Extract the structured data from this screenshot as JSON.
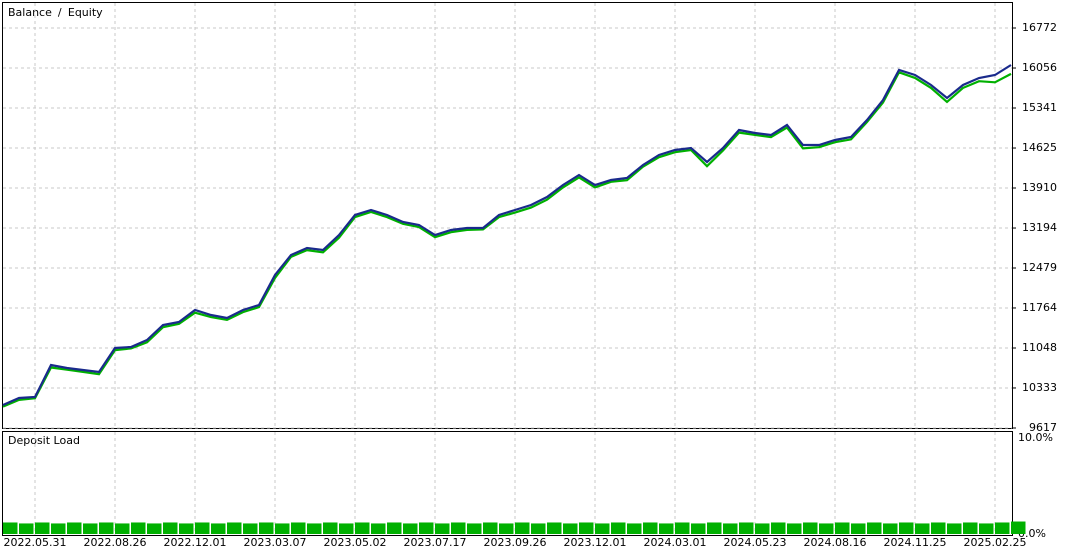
{
  "chart_data": [
    {
      "type": "line",
      "legend": "top-left",
      "grid": true,
      "categories": [
        null,
        null,
        "2022.05.31",
        null,
        null,
        null,
        null,
        "2022.08.26",
        null,
        null,
        null,
        null,
        "2022.12.01",
        null,
        null,
        null,
        null,
        "2023.03.07",
        null,
        null,
        null,
        null,
        "2023.05.02",
        null,
        null,
        null,
        null,
        "2023.07.17",
        null,
        null,
        null,
        null,
        "2023.09.26",
        null,
        null,
        null,
        null,
        "2023.12.01",
        null,
        null,
        null,
        null,
        "2024.03.01",
        null,
        null,
        null,
        null,
        "2024.05.23",
        null,
        null,
        null,
        null,
        "2024.08.16",
        null,
        null,
        null,
        null,
        "2024.11.25",
        null,
        null,
        null,
        null,
        "2025.02.25",
        null
      ],
      "ylim": [
        9617,
        17219
      ],
      "yticks": [
        9617,
        10333,
        11048,
        11764,
        12479,
        13194,
        13910,
        14625,
        15341,
        16056,
        16772
      ],
      "series": [
        {
          "name": "Equity",
          "color": "#00b000",
          "values": [
            10000,
            10120,
            10150,
            10700,
            10660,
            10620,
            10580,
            11010,
            11040,
            11150,
            11420,
            11480,
            11680,
            11600,
            11550,
            11690,
            11780,
            12300,
            12680,
            12800,
            12760,
            13020,
            13390,
            13480,
            13390,
            13270,
            13210,
            13030,
            13120,
            13160,
            13170,
            13390,
            13470,
            13560,
            13700,
            13920,
            14100,
            13920,
            14020,
            14050,
            14290,
            14460,
            14550,
            14590,
            14300,
            14580,
            14900,
            14860,
            14820,
            14990,
            14620,
            14640,
            14730,
            14780,
            15090,
            15440,
            15980,
            15880,
            15700,
            15450,
            15700,
            15820,
            15800,
            15950
          ]
        },
        {
          "name": "Balance",
          "color": "#1a2a8c",
          "values": [
            10028,
            10154,
            10172,
            10744,
            10690,
            10655,
            10619,
            11048,
            11066,
            11191,
            11459,
            11513,
            11728,
            11638,
            11585,
            11728,
            11817,
            12354,
            12711,
            12837,
            12801,
            13069,
            13427,
            13516,
            13427,
            13302,
            13248,
            13069,
            13159,
            13194,
            13194,
            13427,
            13516,
            13606,
            13749,
            13963,
            14142,
            13963,
            14053,
            14089,
            14321,
            14500,
            14590,
            14625,
            14375,
            14625,
            14947,
            14893,
            14858,
            15037,
            14679,
            14679,
            14768,
            14822,
            15126,
            15484,
            16020,
            15931,
            15752,
            15520,
            15752,
            15878,
            15931,
            16110
          ]
        }
      ]
    },
    {
      "type": "bar",
      "title": "Deposit Load",
      "color": "#00b000",
      "ylim": [
        0,
        10
      ],
      "yticks": [
        {
          "value": 10,
          "label": "10.0%"
        },
        {
          "value": 0,
          "label": "0.0%"
        }
      ],
      "values": [
        1.2,
        1.1,
        1.2,
        1.1,
        1.2,
        1.1,
        1.2,
        1.1,
        1.2,
        1.1,
        1.2,
        1.1,
        1.2,
        1.1,
        1.2,
        1.1,
        1.2,
        1.1,
        1.2,
        1.1,
        1.2,
        1.1,
        1.2,
        1.1,
        1.2,
        1.1,
        1.2,
        1.1,
        1.2,
        1.1,
        1.2,
        1.1,
        1.2,
        1.1,
        1.2,
        1.1,
        1.2,
        1.1,
        1.2,
        1.1,
        1.2,
        1.1,
        1.2,
        1.1,
        1.2,
        1.1,
        1.2,
        1.1,
        1.2,
        1.1,
        1.2,
        1.1,
        1.2,
        1.1,
        1.2,
        1.1,
        1.2,
        1.1,
        1.2,
        1.1,
        1.2,
        1.1,
        1.2,
        1.3
      ]
    }
  ]
}
